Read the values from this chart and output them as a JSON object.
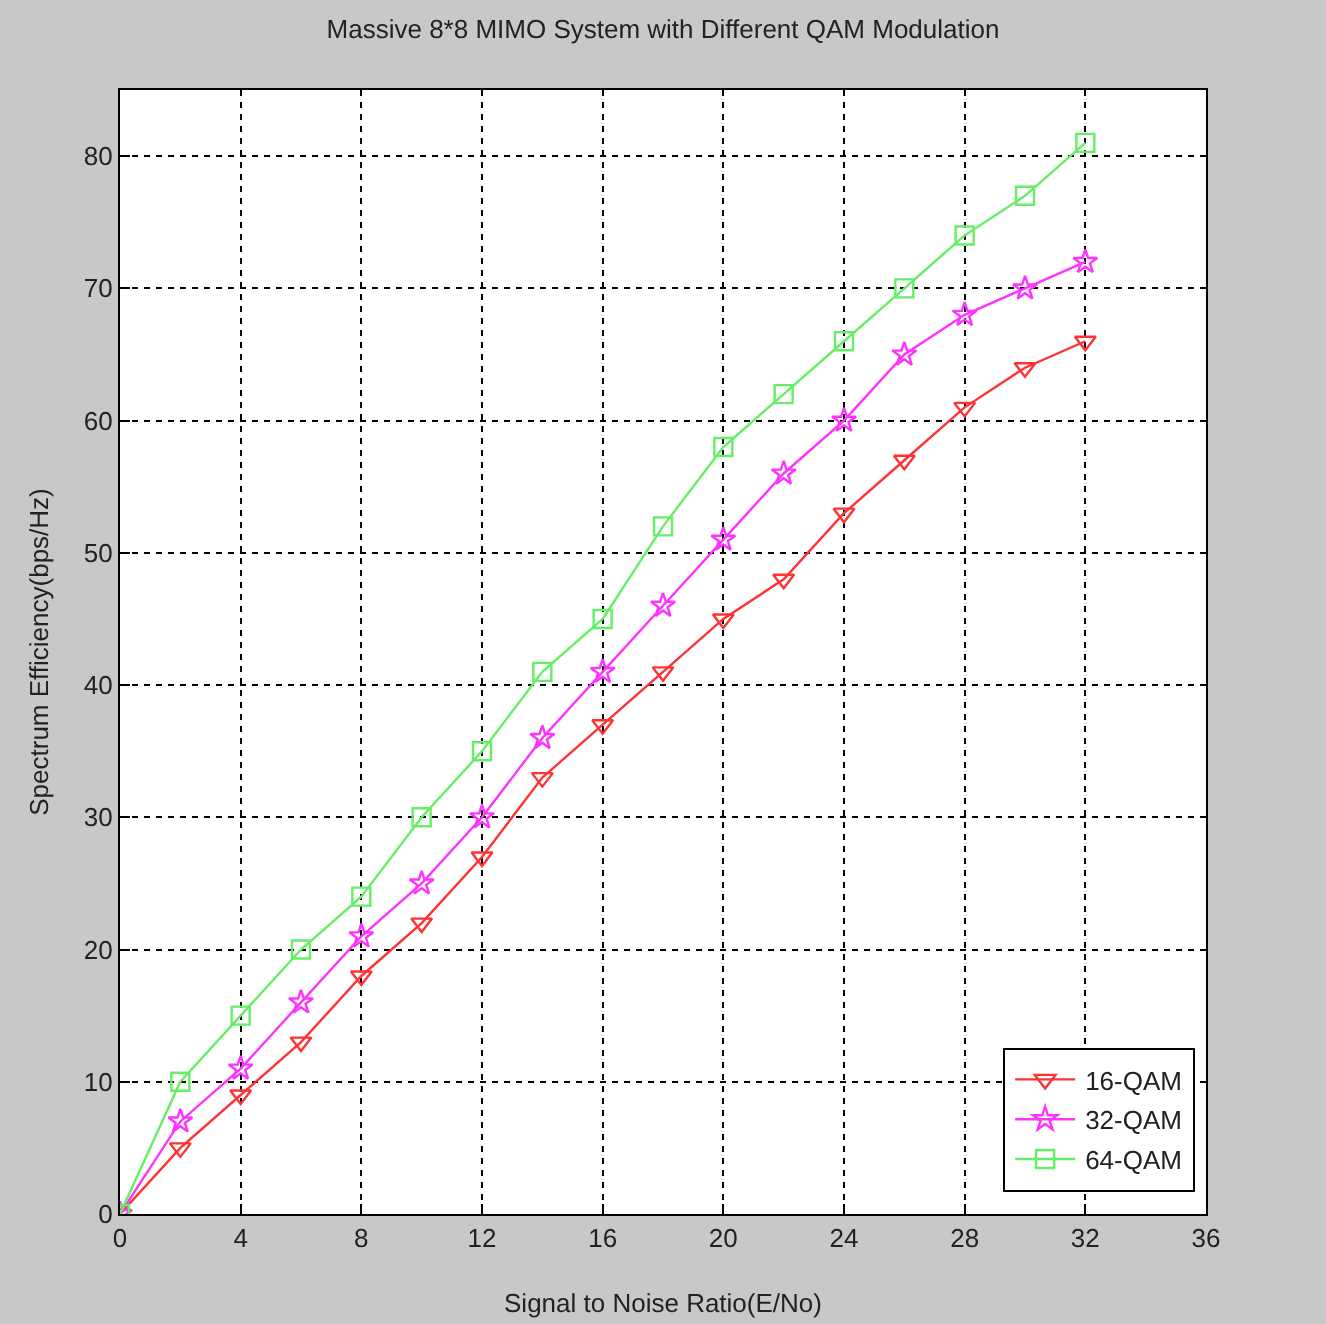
{
  "chart_data": {
    "type": "line",
    "title": "Massive 8*8 MIMO System with Different QAM Modulation",
    "xlabel": "Signal to Noise Ratio(E/No)",
    "ylabel": "Spectrum Efficiency(bps/Hz)",
    "x": [
      0,
      2,
      4,
      6,
      8,
      10,
      12,
      14,
      16,
      18,
      20,
      22,
      24,
      26,
      28,
      30,
      32
    ],
    "series": [
      {
        "name": "16-QAM",
        "color": "#ff3333",
        "marker": "triangle",
        "values": [
          0,
          5,
          9,
          13,
          18,
          22,
          27,
          33,
          37,
          41,
          45,
          48,
          53,
          57,
          61,
          64,
          66
        ]
      },
      {
        "name": "32-QAM",
        "color": "#ff33ff",
        "marker": "star",
        "values": [
          0,
          7,
          11,
          16,
          21,
          25,
          30,
          36,
          41,
          46,
          51,
          56,
          60,
          65,
          68,
          70,
          72
        ]
      },
      {
        "name": "64-QAM",
        "color": "#66ee66",
        "marker": "square",
        "values": [
          0,
          10,
          15,
          20,
          24,
          30,
          35,
          41,
          45,
          52,
          58,
          62,
          66,
          70,
          74,
          77,
          81
        ]
      }
    ],
    "xlim": [
      0,
      36
    ],
    "xticks": [
      0,
      4,
      8,
      12,
      16,
      20,
      24,
      28,
      32,
      36
    ],
    "ylim": [
      0,
      85
    ],
    "yticks": [
      0,
      10,
      20,
      30,
      40,
      50,
      60,
      70,
      80
    ],
    "grid": true,
    "legend": "bottom right",
    "line_style": "solid"
  }
}
